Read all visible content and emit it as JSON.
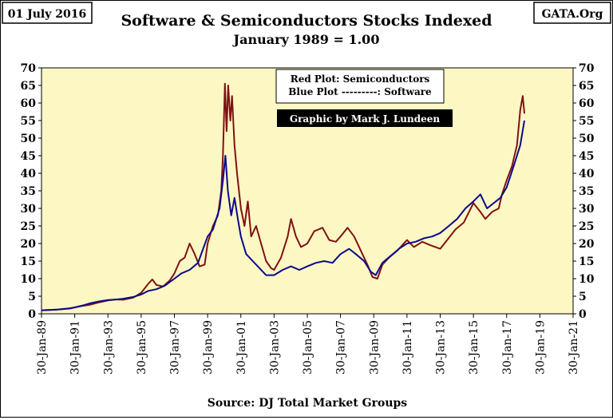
{
  "header": {
    "date": "01 July 2016",
    "site": "GATA.Org",
    "title": "Software & Semiconductors Stocks Indexed",
    "subtitle": "January 1989 = 1.00"
  },
  "legend": {
    "line1": "Red Plot: Semiconductors",
    "line2": "Blue Plot ---------: Software",
    "credit": "Graphic by Mark J. Lundeen"
  },
  "source": "Source: DJ  Total Market Groups",
  "colors": {
    "background": "#fdf7c4",
    "red": "#7f1212",
    "blue": "#0a0a8c",
    "credit_bg": "#000000"
  },
  "chart_data": {
    "type": "line",
    "title": "Software & Semiconductors Stocks Indexed",
    "subtitle": "January 1989 = 1.00",
    "xlim": [
      1989.08,
      2021.08
    ],
    "ylim": [
      0,
      70
    ],
    "yticks": [
      0,
      5,
      10,
      15,
      20,
      25,
      30,
      35,
      40,
      45,
      50,
      55,
      60,
      65,
      70
    ],
    "y_axis_both_sides": true,
    "xticks": [
      {
        "x": 1989.08,
        "label": "30-Jan-89"
      },
      {
        "x": 1991.08,
        "label": "30-Jan-91"
      },
      {
        "x": 1993.08,
        "label": "30-Jan-93"
      },
      {
        "x": 1995.08,
        "label": "30-Jan-95"
      },
      {
        "x": 1997.08,
        "label": "30-Jan-97"
      },
      {
        "x": 1999.08,
        "label": "30-Jan-99"
      },
      {
        "x": 2001.08,
        "label": "30-Jan-01"
      },
      {
        "x": 2003.08,
        "label": "30-Jan-03"
      },
      {
        "x": 2005.08,
        "label": "30-Jan-05"
      },
      {
        "x": 2007.08,
        "label": "30-Jan-07"
      },
      {
        "x": 2009.08,
        "label": "30-Jan-09"
      },
      {
        "x": 2011.08,
        "label": "30-Jan-11"
      },
      {
        "x": 2013.08,
        "label": "30-Jan-13"
      },
      {
        "x": 2015.08,
        "label": "30-Jan-15"
      },
      {
        "x": 2017.08,
        "label": "30-Jan-17"
      },
      {
        "x": 2019.08,
        "label": "30-Jan-19"
      },
      {
        "x": 2021.08,
        "label": "30-Jan-21"
      }
    ],
    "grid": false,
    "legend_position": "top-center",
    "series": [
      {
        "name": "Semiconductors",
        "color": "#7f1212",
        "points": [
          [
            1989.08,
            1.0
          ],
          [
            1990.0,
            1.2
          ],
          [
            1990.8,
            1.6
          ],
          [
            1991.5,
            2.2
          ],
          [
            1992.0,
            2.6
          ],
          [
            1992.5,
            3.2
          ],
          [
            1993.08,
            3.8
          ],
          [
            1993.6,
            4.1
          ],
          [
            1994.0,
            4.0
          ],
          [
            1994.6,
            4.6
          ],
          [
            1995.08,
            6.0
          ],
          [
            1995.5,
            8.5
          ],
          [
            1995.75,
            9.8
          ],
          [
            1996.0,
            8.2
          ],
          [
            1996.4,
            7.8
          ],
          [
            1996.8,
            9.5
          ],
          [
            1997.08,
            11.5
          ],
          [
            1997.4,
            15.0
          ],
          [
            1997.7,
            16.0
          ],
          [
            1998.0,
            20.0
          ],
          [
            1998.3,
            17.0
          ],
          [
            1998.6,
            13.5
          ],
          [
            1998.9,
            14.0
          ],
          [
            1999.08,
            20.0
          ],
          [
            1999.4,
            25.0
          ],
          [
            1999.7,
            28.0
          ],
          [
            1999.9,
            35.0
          ],
          [
            2000.0,
            45.0
          ],
          [
            2000.12,
            65.5
          ],
          [
            2000.22,
            52.0
          ],
          [
            2000.32,
            65.0
          ],
          [
            2000.45,
            55.0
          ],
          [
            2000.55,
            62.0
          ],
          [
            2000.7,
            48.0
          ],
          [
            2000.85,
            40.0
          ],
          [
            2001.08,
            30.0
          ],
          [
            2001.3,
            25.0
          ],
          [
            2001.5,
            32.0
          ],
          [
            2001.7,
            22.0
          ],
          [
            2002.0,
            25.0
          ],
          [
            2002.3,
            20.0
          ],
          [
            2002.6,
            15.0
          ],
          [
            2002.9,
            13.0
          ],
          [
            2003.08,
            12.5
          ],
          [
            2003.5,
            16.0
          ],
          [
            2003.9,
            22.0
          ],
          [
            2004.1,
            27.0
          ],
          [
            2004.4,
            22.0
          ],
          [
            2004.7,
            19.0
          ],
          [
            2005.08,
            20.0
          ],
          [
            2005.5,
            23.5
          ],
          [
            2006.0,
            24.5
          ],
          [
            2006.4,
            21.0
          ],
          [
            2006.8,
            20.5
          ],
          [
            2007.08,
            22.0
          ],
          [
            2007.5,
            24.5
          ],
          [
            2007.9,
            22.0
          ],
          [
            2008.3,
            18.0
          ],
          [
            2008.7,
            14.0
          ],
          [
            2009.0,
            10.5
          ],
          [
            2009.3,
            10.0
          ],
          [
            2009.6,
            14.0
          ],
          [
            2010.0,
            16.0
          ],
          [
            2010.5,
            18.0
          ],
          [
            2011.08,
            21.0
          ],
          [
            2011.5,
            19.0
          ],
          [
            2012.0,
            20.5
          ],
          [
            2012.5,
            19.5
          ],
          [
            2013.08,
            18.5
          ],
          [
            2013.5,
            21.0
          ],
          [
            2014.0,
            24.0
          ],
          [
            2014.5,
            26.0
          ],
          [
            2015.08,
            31.5
          ],
          [
            2015.5,
            29.0
          ],
          [
            2015.8,
            27.0
          ],
          [
            2016.2,
            29.0
          ],
          [
            2016.6,
            30.0
          ],
          [
            2016.8,
            34.0
          ],
          [
            2017.08,
            38.0
          ],
          [
            2017.4,
            42.0
          ],
          [
            2017.7,
            48.0
          ],
          [
            2017.9,
            58.0
          ],
          [
            2018.05,
            62.0
          ],
          [
            2018.15,
            57.0
          ]
        ]
      },
      {
        "name": "Software",
        "color": "#0a0a8c",
        "points": [
          [
            1989.08,
            1.0
          ],
          [
            1990.0,
            1.2
          ],
          [
            1990.8,
            1.5
          ],
          [
            1991.5,
            2.3
          ],
          [
            1992.0,
            3.0
          ],
          [
            1992.5,
            3.5
          ],
          [
            1993.08,
            3.9
          ],
          [
            1993.6,
            4.1
          ],
          [
            1994.0,
            4.3
          ],
          [
            1994.6,
            4.8
          ],
          [
            1995.08,
            5.5
          ],
          [
            1995.5,
            6.5
          ],
          [
            1996.0,
            7.0
          ],
          [
            1996.5,
            8.0
          ],
          [
            1997.08,
            10.0
          ],
          [
            1997.5,
            11.5
          ],
          [
            1998.0,
            12.5
          ],
          [
            1998.5,
            14.5
          ],
          [
            1999.08,
            22.0
          ],
          [
            1999.4,
            24.0
          ],
          [
            1999.8,
            30.0
          ],
          [
            2000.0,
            38.0
          ],
          [
            2000.15,
            45.0
          ],
          [
            2000.3,
            35.0
          ],
          [
            2000.5,
            28.0
          ],
          [
            2000.7,
            33.0
          ],
          [
            2000.9,
            27.0
          ],
          [
            2001.08,
            22.0
          ],
          [
            2001.4,
            17.0
          ],
          [
            2001.8,
            15.0
          ],
          [
            2002.2,
            13.0
          ],
          [
            2002.6,
            11.0
          ],
          [
            2003.08,
            11.0
          ],
          [
            2003.6,
            12.5
          ],
          [
            2004.1,
            13.5
          ],
          [
            2004.6,
            12.5
          ],
          [
            2005.08,
            13.5
          ],
          [
            2005.6,
            14.5
          ],
          [
            2006.1,
            15.0
          ],
          [
            2006.6,
            14.5
          ],
          [
            2007.08,
            17.0
          ],
          [
            2007.6,
            18.5
          ],
          [
            2008.0,
            17.0
          ],
          [
            2008.5,
            15.0
          ],
          [
            2008.9,
            12.0
          ],
          [
            2009.2,
            11.0
          ],
          [
            2009.6,
            14.5
          ],
          [
            2010.1,
            16.5
          ],
          [
            2010.6,
            18.5
          ],
          [
            2011.08,
            20.0
          ],
          [
            2011.6,
            20.5
          ],
          [
            2012.1,
            21.5
          ],
          [
            2012.6,
            22.0
          ],
          [
            2013.08,
            23.0
          ],
          [
            2013.6,
            25.0
          ],
          [
            2014.1,
            27.0
          ],
          [
            2014.6,
            30.0
          ],
          [
            2015.08,
            32.0
          ],
          [
            2015.5,
            34.0
          ],
          [
            2015.9,
            30.0
          ],
          [
            2016.3,
            31.5
          ],
          [
            2016.7,
            33.0
          ],
          [
            2017.08,
            36.0
          ],
          [
            2017.5,
            42.0
          ],
          [
            2017.9,
            48.0
          ],
          [
            2018.15,
            55.0
          ]
        ]
      }
    ]
  }
}
